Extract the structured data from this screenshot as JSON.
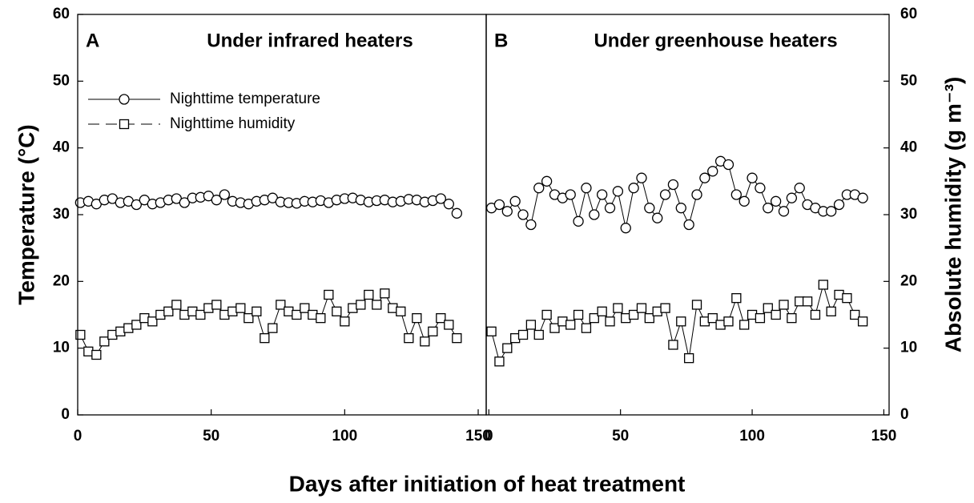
{
  "xlabel": "Days after initiation of heat treatment",
  "chart_data": [
    {
      "type": "line",
      "panel_label": "A",
      "title": "Under infrared heaters",
      "ylabel": "Temperature (°C)",
      "legend": "upper left",
      "xlim": [
        0,
        153
      ],
      "xticks": [
        0,
        50,
        100,
        150
      ],
      "ylim": [
        0,
        60
      ],
      "yticks": [
        0,
        10,
        20,
        30,
        40,
        50,
        60
      ],
      "y2lim": [
        0,
        60
      ],
      "x": [
        1,
        4,
        7,
        10,
        13,
        16,
        19,
        22,
        25,
        28,
        31,
        34,
        37,
        40,
        43,
        46,
        49,
        52,
        55,
        58,
        61,
        64,
        67,
        70,
        73,
        76,
        79,
        82,
        85,
        88,
        91,
        94,
        97,
        100,
        103,
        106,
        109,
        112,
        115,
        118,
        121,
        124,
        127,
        130,
        133,
        136,
        139,
        142
      ],
      "series": [
        {
          "name": "Nighttime temperature",
          "marker": "circle",
          "color": "#000000",
          "values": [
            31.8,
            32,
            31.6,
            32.2,
            32.4,
            31.8,
            32,
            31.5,
            32.2,
            31.6,
            31.8,
            32.2,
            32.4,
            31.8,
            32.5,
            32.6,
            32.8,
            32.2,
            33,
            32,
            31.8,
            31.6,
            32,
            32.2,
            32.5,
            31.9,
            31.8,
            31.7,
            32,
            31.9,
            32.1,
            31.8,
            32.2,
            32.4,
            32.5,
            32.2,
            31.9,
            32.1,
            32.2,
            31.9,
            32,
            32.3,
            32.2,
            31.9,
            32.1,
            32.4,
            31.6,
            30.2
          ]
        },
        {
          "name": "Nighttime humidity",
          "marker": "square",
          "color": "#000000",
          "axis": "y2",
          "values": [
            12,
            9.5,
            9,
            11,
            12,
            12.5,
            13,
            13.5,
            14.5,
            14,
            15,
            15.5,
            16.5,
            15,
            15.5,
            15,
            16,
            16.5,
            15,
            15.5,
            16,
            14.5,
            15.5,
            11.5,
            13,
            16.5,
            15.5,
            15,
            16,
            15,
            14.5,
            18,
            15.5,
            14,
            16,
            16.5,
            18,
            16.5,
            18.2,
            16,
            15.5,
            11.5,
            14.5,
            11,
            12.5,
            14.5,
            13.5,
            11.5
          ]
        }
      ]
    },
    {
      "type": "line",
      "panel_label": "B",
      "title": "Under greenhouse heaters",
      "y2label": "Absolute humidity (g m⁻³)",
      "xlim": [
        -1,
        152
      ],
      "xticks": [
        0,
        50,
        100,
        150
      ],
      "ylim": [
        0,
        60
      ],
      "y2lim": [
        0,
        60
      ],
      "y2ticks": [
        0,
        10,
        20,
        30,
        40,
        50,
        60
      ],
      "x": [
        1,
        4,
        7,
        10,
        13,
        16,
        19,
        22,
        25,
        28,
        31,
        34,
        37,
        40,
        43,
        46,
        49,
        52,
        55,
        58,
        61,
        64,
        67,
        70,
        73,
        76,
        79,
        82,
        85,
        88,
        91,
        94,
        97,
        100,
        103,
        106,
        109,
        112,
        115,
        118,
        121,
        124,
        127,
        130,
        133,
        136,
        139,
        142
      ],
      "series": [
        {
          "marker": "circle",
          "color": "#000000",
          "values": [
            31,
            31.5,
            30.5,
            32,
            30,
            28.5,
            34,
            35,
            33,
            32.5,
            33,
            29,
            34,
            30,
            33,
            31,
            33.5,
            28,
            34,
            35.5,
            31,
            29.5,
            33,
            34.5,
            31,
            28.5,
            33,
            35.5,
            36.5,
            38,
            37.5,
            33,
            32,
            35.5,
            34,
            31,
            32,
            30.5,
            32.5,
            34,
            31.5,
            31,
            30.5,
            30.5,
            31.5,
            33,
            33,
            32.5
          ]
        },
        {
          "marker": "square",
          "color": "#000000",
          "axis": "y2",
          "values": [
            12.5,
            8,
            10,
            11.5,
            12,
            13.5,
            12,
            15,
            13,
            14,
            13.5,
            15,
            13,
            14.5,
            15.5,
            14,
            16,
            14.5,
            15,
            16,
            14.5,
            15.5,
            16,
            10.5,
            14,
            8.5,
            16.5,
            14,
            14.5,
            13.5,
            14,
            17.5,
            13.5,
            15,
            14.5,
            16,
            15,
            16.5,
            14.5,
            17,
            17,
            15,
            19.5,
            15.5,
            18,
            17.5,
            15,
            14
          ]
        }
      ]
    }
  ]
}
